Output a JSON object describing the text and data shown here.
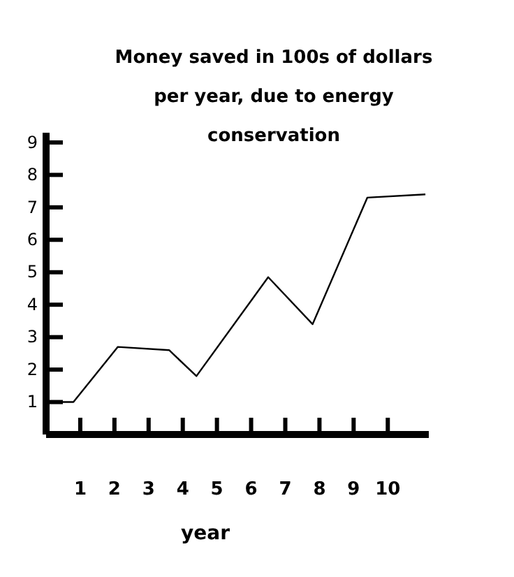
{
  "chart_data": {
    "type": "line",
    "title": "Money saved in 100s of dollars per year, due to energy conservation",
    "xlabel": "year",
    "x": [
      0,
      0.8,
      2.1,
      3.6,
      4.4,
      6.5,
      7.8,
      9.4,
      11.1
    ],
    "series": [
      {
        "color": "#000000",
        "values": [
          1.0,
          1.0,
          2.7,
          2.6,
          1.8,
          4.85,
          3.4,
          7.3,
          7.4
        ]
      }
    ],
    "xlim": [
      0,
      11.2
    ],
    "xticks": [
      1,
      2,
      3,
      4,
      5,
      6,
      7,
      8,
      9,
      10
    ],
    "ylim": [
      0,
      9.3
    ],
    "yticks": [
      1,
      2,
      3,
      4,
      5,
      6,
      7,
      8,
      9
    ],
    "grid": false,
    "marker": "none",
    "line_style": "solid"
  }
}
